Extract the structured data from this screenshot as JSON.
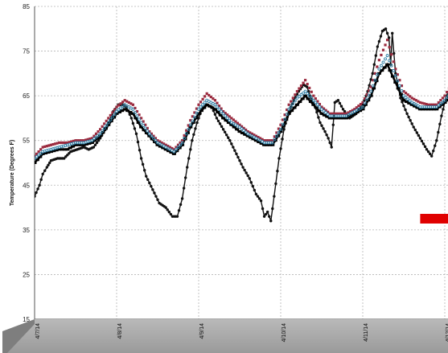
{
  "chart_data": {
    "type": "line",
    "title": "",
    "xlabel": "",
    "ylabel": "Temperature (Degrees F)",
    "ylim": [
      15,
      85
    ],
    "yticks": [
      15,
      25,
      35,
      45,
      55,
      65,
      75,
      85
    ],
    "xlim": [
      0,
      5.1
    ],
    "xticks": [
      {
        "x": 0,
        "label": "4/7/14"
      },
      {
        "x": 1,
        "label": "4/8/14"
      },
      {
        "x": 2,
        "label": "4/9/14"
      },
      {
        "x": 3,
        "label": "4/10/14"
      },
      {
        "x": 4,
        "label": "4/11/14"
      },
      {
        "x": 5,
        "label": "4/12/14"
      }
    ],
    "grid": true,
    "colors": {
      "outdoor": "#111111",
      "thick": "#000000",
      "red": "#9b2b3f",
      "blue": "#2f7fa6",
      "bar": "#e00000",
      "axis_band": "#9a9a9a"
    },
    "series": [
      {
        "key": "outdoor",
        "points": [
          [
            0.0,
            42.5
          ],
          [
            0.06,
            45.0
          ],
          [
            0.1,
            47.5
          ],
          [
            0.15,
            49.0
          ],
          [
            0.2,
            50.5
          ],
          [
            0.28,
            51.0
          ],
          [
            0.36,
            51.0
          ],
          [
            0.44,
            52.5
          ],
          [
            0.52,
            53.0
          ],
          [
            0.6,
            53.5
          ],
          [
            0.66,
            53.0
          ],
          [
            0.72,
            53.5
          ],
          [
            0.8,
            55.5
          ],
          [
            0.88,
            58.0
          ],
          [
            0.96,
            61.5
          ],
          [
            1.02,
            63.0
          ],
          [
            1.07,
            63.0
          ],
          [
            1.12,
            62.5
          ],
          [
            1.18,
            60.0
          ],
          [
            1.24,
            56.5
          ],
          [
            1.3,
            51.0
          ],
          [
            1.36,
            47.0
          ],
          [
            1.44,
            44.0
          ],
          [
            1.52,
            41.0
          ],
          [
            1.6,
            40.0
          ],
          [
            1.68,
            38.0
          ],
          [
            1.74,
            38.0
          ],
          [
            1.8,
            42.0
          ],
          [
            1.86,
            49.0
          ],
          [
            1.92,
            55.0
          ],
          [
            1.98,
            59.0
          ],
          [
            2.04,
            62.0
          ],
          [
            2.1,
            63.0
          ],
          [
            2.16,
            62.5
          ],
          [
            2.22,
            60.0
          ],
          [
            2.3,
            57.5
          ],
          [
            2.38,
            55.0
          ],
          [
            2.46,
            52.0
          ],
          [
            2.54,
            49.0
          ],
          [
            2.62,
            46.5
          ],
          [
            2.7,
            43.0
          ],
          [
            2.76,
            41.5
          ],
          [
            2.8,
            38.0
          ],
          [
            2.84,
            39.0
          ],
          [
            2.88,
            37.0
          ],
          [
            2.92,
            42.5
          ],
          [
            2.98,
            51.0
          ],
          [
            3.04,
            57.5
          ],
          [
            3.1,
            61.5
          ],
          [
            3.16,
            64.0
          ],
          [
            3.22,
            66.0
          ],
          [
            3.28,
            67.5
          ],
          [
            3.32,
            67.0
          ],
          [
            3.36,
            65.0
          ],
          [
            3.42,
            62.5
          ],
          [
            3.48,
            59.0
          ],
          [
            3.54,
            57.0
          ],
          [
            3.58,
            55.5
          ],
          [
            3.62,
            53.5
          ],
          [
            3.66,
            63.5
          ],
          [
            3.7,
            64.0
          ],
          [
            3.76,
            62.0
          ],
          [
            3.84,
            60.0
          ],
          [
            3.92,
            61.0
          ],
          [
            4.0,
            63.0
          ],
          [
            4.06,
            66.0
          ],
          [
            4.12,
            70.0
          ],
          [
            4.18,
            76.0
          ],
          [
            4.24,
            79.5
          ],
          [
            4.28,
            80.0
          ],
          [
            4.32,
            78.0
          ],
          [
            4.34,
            72.0
          ],
          [
            4.36,
            79.0
          ],
          [
            4.4,
            70.0
          ],
          [
            4.46,
            64.5
          ],
          [
            4.54,
            61.0
          ],
          [
            4.62,
            58.0
          ],
          [
            4.7,
            55.5
          ],
          [
            4.78,
            53.0
          ],
          [
            4.84,
            51.5
          ],
          [
            4.9,
            55.0
          ],
          [
            4.96,
            60.5
          ],
          [
            5.02,
            65.0
          ],
          [
            5.08,
            67.0
          ]
        ]
      },
      {
        "key": "thick",
        "points": [
          [
            0.0,
            50.0
          ],
          [
            0.1,
            52.0
          ],
          [
            0.2,
            52.5
          ],
          [
            0.3,
            53.0
          ],
          [
            0.4,
            53.0
          ],
          [
            0.5,
            54.0
          ],
          [
            0.6,
            54.0
          ],
          [
            0.7,
            54.5
          ],
          [
            0.8,
            56.0
          ],
          [
            0.9,
            58.5
          ],
          [
            1.0,
            61.0
          ],
          [
            1.1,
            62.0
          ],
          [
            1.2,
            61.0
          ],
          [
            1.3,
            58.0
          ],
          [
            1.4,
            56.0
          ],
          [
            1.5,
            54.0
          ],
          [
            1.6,
            53.0
          ],
          [
            1.7,
            52.0
          ],
          [
            1.8,
            54.0
          ],
          [
            1.9,
            58.0
          ],
          [
            2.0,
            61.0
          ],
          [
            2.1,
            63.0
          ],
          [
            2.2,
            62.0
          ],
          [
            2.3,
            60.0
          ],
          [
            2.4,
            58.5
          ],
          [
            2.5,
            57.0
          ],
          [
            2.6,
            56.0
          ],
          [
            2.7,
            55.0
          ],
          [
            2.8,
            54.0
          ],
          [
            2.9,
            54.0
          ],
          [
            3.0,
            57.0
          ],
          [
            3.1,
            61.0
          ],
          [
            3.2,
            63.0
          ],
          [
            3.3,
            65.0
          ],
          [
            3.4,
            63.0
          ],
          [
            3.5,
            61.0
          ],
          [
            3.6,
            60.0
          ],
          [
            3.7,
            60.0
          ],
          [
            3.8,
            60.0
          ],
          [
            3.9,
            61.0
          ],
          [
            4.0,
            62.0
          ],
          [
            4.1,
            65.0
          ],
          [
            4.2,
            70.0
          ],
          [
            4.3,
            72.0
          ],
          [
            4.4,
            68.0
          ],
          [
            4.5,
            64.0
          ],
          [
            4.6,
            63.0
          ],
          [
            4.7,
            62.0
          ],
          [
            4.8,
            62.0
          ],
          [
            4.9,
            62.0
          ],
          [
            5.0,
            63.5
          ],
          [
            5.08,
            65.0
          ]
        ]
      },
      {
        "key": "red",
        "points": [
          [
            0.0,
            51.5
          ],
          [
            0.1,
            53.5
          ],
          [
            0.2,
            54.0
          ],
          [
            0.3,
            54.5
          ],
          [
            0.4,
            54.5
          ],
          [
            0.5,
            55.0
          ],
          [
            0.6,
            55.0
          ],
          [
            0.7,
            55.5
          ],
          [
            0.8,
            57.5
          ],
          [
            0.9,
            60.0
          ],
          [
            1.0,
            62.5
          ],
          [
            1.1,
            64.0
          ],
          [
            1.2,
            63.0
          ],
          [
            1.3,
            60.0
          ],
          [
            1.4,
            57.0
          ],
          [
            1.5,
            55.0
          ],
          [
            1.6,
            54.0
          ],
          [
            1.7,
            53.0
          ],
          [
            1.8,
            55.0
          ],
          [
            1.9,
            59.5
          ],
          [
            2.0,
            63.0
          ],
          [
            2.1,
            65.5
          ],
          [
            2.2,
            64.0
          ],
          [
            2.3,
            61.5
          ],
          [
            2.4,
            60.0
          ],
          [
            2.5,
            58.5
          ],
          [
            2.6,
            57.0
          ],
          [
            2.7,
            56.0
          ],
          [
            2.8,
            55.0
          ],
          [
            2.9,
            55.0
          ],
          [
            3.0,
            58.5
          ],
          [
            3.1,
            63.0
          ],
          [
            3.2,
            66.0
          ],
          [
            3.3,
            68.5
          ],
          [
            3.4,
            65.0
          ],
          [
            3.5,
            62.5
          ],
          [
            3.6,
            61.0
          ],
          [
            3.7,
            61.0
          ],
          [
            3.8,
            61.0
          ],
          [
            3.9,
            62.0
          ],
          [
            4.0,
            63.5
          ],
          [
            4.1,
            67.0
          ],
          [
            4.2,
            73.0
          ],
          [
            4.3,
            77.5
          ],
          [
            4.4,
            71.0
          ],
          [
            4.5,
            66.0
          ],
          [
            4.6,
            64.5
          ],
          [
            4.7,
            63.5
          ],
          [
            4.8,
            63.0
          ],
          [
            4.9,
            63.0
          ],
          [
            5.0,
            65.0
          ],
          [
            5.08,
            67.5
          ]
        ]
      },
      {
        "key": "blue",
        "points": [
          [
            0.0,
            51.0
          ],
          [
            0.1,
            52.5
          ],
          [
            0.2,
            53.0
          ],
          [
            0.3,
            53.5
          ],
          [
            0.4,
            54.0
          ],
          [
            0.5,
            54.5
          ],
          [
            0.6,
            54.5
          ],
          [
            0.7,
            55.0
          ],
          [
            0.8,
            56.5
          ],
          [
            0.9,
            59.0
          ],
          [
            1.0,
            61.5
          ],
          [
            1.1,
            63.0
          ],
          [
            1.2,
            62.0
          ],
          [
            1.3,
            59.0
          ],
          [
            1.4,
            56.5
          ],
          [
            1.5,
            54.5
          ],
          [
            1.6,
            53.5
          ],
          [
            1.7,
            52.5
          ],
          [
            1.8,
            54.5
          ],
          [
            1.9,
            58.5
          ],
          [
            2.0,
            62.0
          ],
          [
            2.1,
            64.0
          ],
          [
            2.2,
            63.0
          ],
          [
            2.3,
            61.0
          ],
          [
            2.4,
            59.0
          ],
          [
            2.5,
            58.0
          ],
          [
            2.6,
            56.5
          ],
          [
            2.7,
            55.5
          ],
          [
            2.8,
            54.5
          ],
          [
            2.9,
            54.5
          ],
          [
            3.0,
            57.5
          ],
          [
            3.1,
            62.0
          ],
          [
            3.2,
            64.5
          ],
          [
            3.3,
            66.0
          ],
          [
            3.4,
            64.0
          ],
          [
            3.5,
            62.0
          ],
          [
            3.6,
            60.5
          ],
          [
            3.7,
            60.5
          ],
          [
            3.8,
            60.5
          ],
          [
            3.9,
            61.5
          ],
          [
            4.0,
            62.5
          ],
          [
            4.1,
            66.0
          ],
          [
            4.2,
            71.0
          ],
          [
            4.3,
            74.0
          ],
          [
            4.4,
            69.5
          ],
          [
            4.5,
            65.0
          ],
          [
            4.6,
            63.5
          ],
          [
            4.7,
            62.5
          ],
          [
            4.8,
            62.5
          ],
          [
            4.9,
            62.5
          ],
          [
            5.0,
            64.0
          ],
          [
            5.08,
            66.0
          ]
        ]
      }
    ],
    "annotation_bar": {
      "x0": 4.7,
      "x1": 5.1,
      "y": 37.5
    }
  }
}
